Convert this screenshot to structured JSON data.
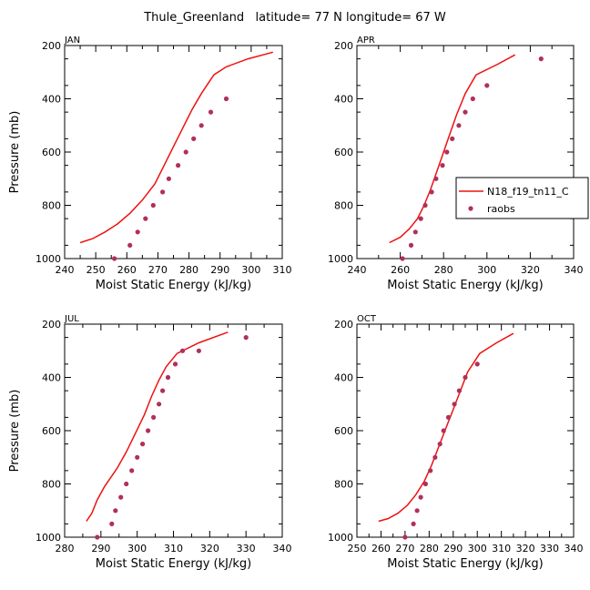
{
  "figure": {
    "title": "Thule_Greenland   latitude= 77 N longitude= 67 W"
  },
  "colors": {
    "model_line": "#ee1111",
    "raobs_dot": "#b0305a"
  },
  "legend": {
    "model_label": "N18_f19_tn11_C",
    "obs_label": "raobs"
  },
  "chart_data": [
    {
      "type": "line",
      "panel": "JAN",
      "title": "JAN",
      "xlabel": "Moist Static Energy (kJ/kg)",
      "ylabel": "Pressure (mb)",
      "xlim": [
        240,
        310
      ],
      "ylim": [
        1000,
        200
      ],
      "xticks": [
        240,
        250,
        260,
        270,
        280,
        290,
        300,
        310
      ],
      "yticks": [
        200,
        400,
        600,
        800,
        1000
      ],
      "series": [
        {
          "name": "N18_f19_tn11_C",
          "kind": "line",
          "points": [
            [
              245,
              940
            ],
            [
              249,
              925
            ],
            [
              253,
              900
            ],
            [
              257,
              870
            ],
            [
              261,
              830
            ],
            [
              265,
              780
            ],
            [
              269,
              720
            ],
            [
              272,
              650
            ],
            [
              275,
              580
            ],
            [
              278,
              510
            ],
            [
              281,
              440
            ],
            [
              284,
              380
            ],
            [
              288,
              310
            ],
            [
              292,
              280
            ],
            [
              299,
              250
            ],
            [
              307,
              225
            ]
          ]
        },
        {
          "name": "raobs",
          "kind": "scatter",
          "points": [
            [
              256,
              1000
            ],
            [
              261,
              950
            ],
            [
              263.5,
              900
            ],
            [
              266,
              850
            ],
            [
              268.5,
              800
            ],
            [
              271.5,
              750
            ],
            [
              273.5,
              700
            ],
            [
              276.5,
              650
            ],
            [
              279,
              600
            ],
            [
              281.5,
              550
            ],
            [
              284,
              500
            ],
            [
              287,
              450
            ],
            [
              292,
              400
            ]
          ]
        }
      ]
    },
    {
      "type": "line",
      "panel": "APR",
      "title": "APR",
      "xlabel": "Moist Static Energy (kJ/kg)",
      "ylabel": "",
      "xlim": [
        240,
        340
      ],
      "ylim": [
        1000,
        200
      ],
      "xticks": [
        240,
        260,
        280,
        300,
        320,
        340
      ],
      "yticks": [
        200,
        400,
        600,
        800,
        1000
      ],
      "series": [
        {
          "name": "N18_f19_tn11_C",
          "kind": "line",
          "points": [
            [
              255,
              940
            ],
            [
              260,
              920
            ],
            [
              264,
              890
            ],
            [
              268,
              850
            ],
            [
              271,
              800
            ],
            [
              274,
              740
            ],
            [
              277,
              670
            ],
            [
              280,
              600
            ],
            [
              283,
              530
            ],
            [
              286,
              460
            ],
            [
              290,
              380
            ],
            [
              295,
              310
            ],
            [
              305,
              270
            ],
            [
              313,
              235
            ]
          ]
        },
        {
          "name": "raobs",
          "kind": "scatter",
          "points": [
            [
              261,
              1000
            ],
            [
              265,
              950
            ],
            [
              267,
              900
            ],
            [
              269.5,
              850
            ],
            [
              271.5,
              800
            ],
            [
              274.5,
              750
            ],
            [
              276.5,
              700
            ],
            [
              279.5,
              650
            ],
            [
              281.5,
              600
            ],
            [
              284,
              550
            ],
            [
              287,
              500
            ],
            [
              290,
              450
            ],
            [
              293.5,
              400
            ],
            [
              300,
              350
            ],
            [
              325,
              250
            ]
          ]
        }
      ]
    },
    {
      "type": "line",
      "panel": "JUL",
      "title": "JUL",
      "xlabel": "Moist Static Energy (kJ/kg)",
      "ylabel": "Pressure (mb)",
      "xlim": [
        280,
        340
      ],
      "ylim": [
        1000,
        200
      ],
      "xticks": [
        280,
        290,
        300,
        310,
        320,
        330,
        340
      ],
      "yticks": [
        200,
        400,
        600,
        800,
        1000
      ],
      "series": [
        {
          "name": "N18_f19_tn11_C",
          "kind": "line",
          "points": [
            [
              286,
              940
            ],
            [
              287.5,
              910
            ],
            [
              289,
              860
            ],
            [
              291,
              810
            ],
            [
              294.5,
              740
            ],
            [
              297,
              680
            ],
            [
              299.5,
              610
            ],
            [
              302,
              540
            ],
            [
              304,
              470
            ],
            [
              306,
              410
            ],
            [
              308,
              360
            ],
            [
              311,
              310
            ],
            [
              317,
              270
            ],
            [
              325,
              230
            ]
          ]
        },
        {
          "name": "raobs",
          "kind": "scatter",
          "points": [
            [
              289,
              1000
            ],
            [
              293,
              950
            ],
            [
              294,
              900
            ],
            [
              295.5,
              850
            ],
            [
              297,
              800
            ],
            [
              298.5,
              750
            ],
            [
              300,
              700
            ],
            [
              301.5,
              650
            ],
            [
              303,
              600
            ],
            [
              304.5,
              550
            ],
            [
              306,
              500
            ],
            [
              307,
              450
            ],
            [
              308.5,
              400
            ],
            [
              310.5,
              350
            ],
            [
              312.5,
              300
            ],
            [
              317,
              300
            ],
            [
              330,
              250
            ]
          ]
        }
      ]
    },
    {
      "type": "line",
      "panel": "OCT",
      "title": "OCT",
      "xlabel": "Moist Static Energy (kJ/kg)",
      "ylabel": "",
      "xlim": [
        250,
        340
      ],
      "ylim": [
        1000,
        200
      ],
      "xticks": [
        250,
        260,
        270,
        280,
        290,
        300,
        310,
        320,
        330,
        340
      ],
      "yticks": [
        200,
        400,
        600,
        800,
        1000
      ],
      "series": [
        {
          "name": "N18_f19_tn11_C",
          "kind": "line",
          "points": [
            [
              259,
              940
            ],
            [
              263,
              930
            ],
            [
              267,
              910
            ],
            [
              271,
              880
            ],
            [
              274.5,
              840
            ],
            [
              278,
              790
            ],
            [
              281,
              730
            ],
            [
              284,
              660
            ],
            [
              287,
              590
            ],
            [
              290,
              520
            ],
            [
              293,
              450
            ],
            [
              296,
              380
            ],
            [
              301,
              310
            ],
            [
              308,
              270
            ],
            [
              315,
              235
            ]
          ]
        },
        {
          "name": "raobs",
          "kind": "scatter",
          "points": [
            [
              270,
              1000
            ],
            [
              273.5,
              950
            ],
            [
              275,
              900
            ],
            [
              276.5,
              850
            ],
            [
              278.5,
              800
            ],
            [
              280.5,
              750
            ],
            [
              282.5,
              700
            ],
            [
              284.5,
              650
            ],
            [
              286,
              600
            ],
            [
              288,
              550
            ],
            [
              290.5,
              500
            ],
            [
              292.5,
              450
            ],
            [
              295,
              400
            ],
            [
              300,
              350
            ]
          ]
        }
      ]
    }
  ]
}
